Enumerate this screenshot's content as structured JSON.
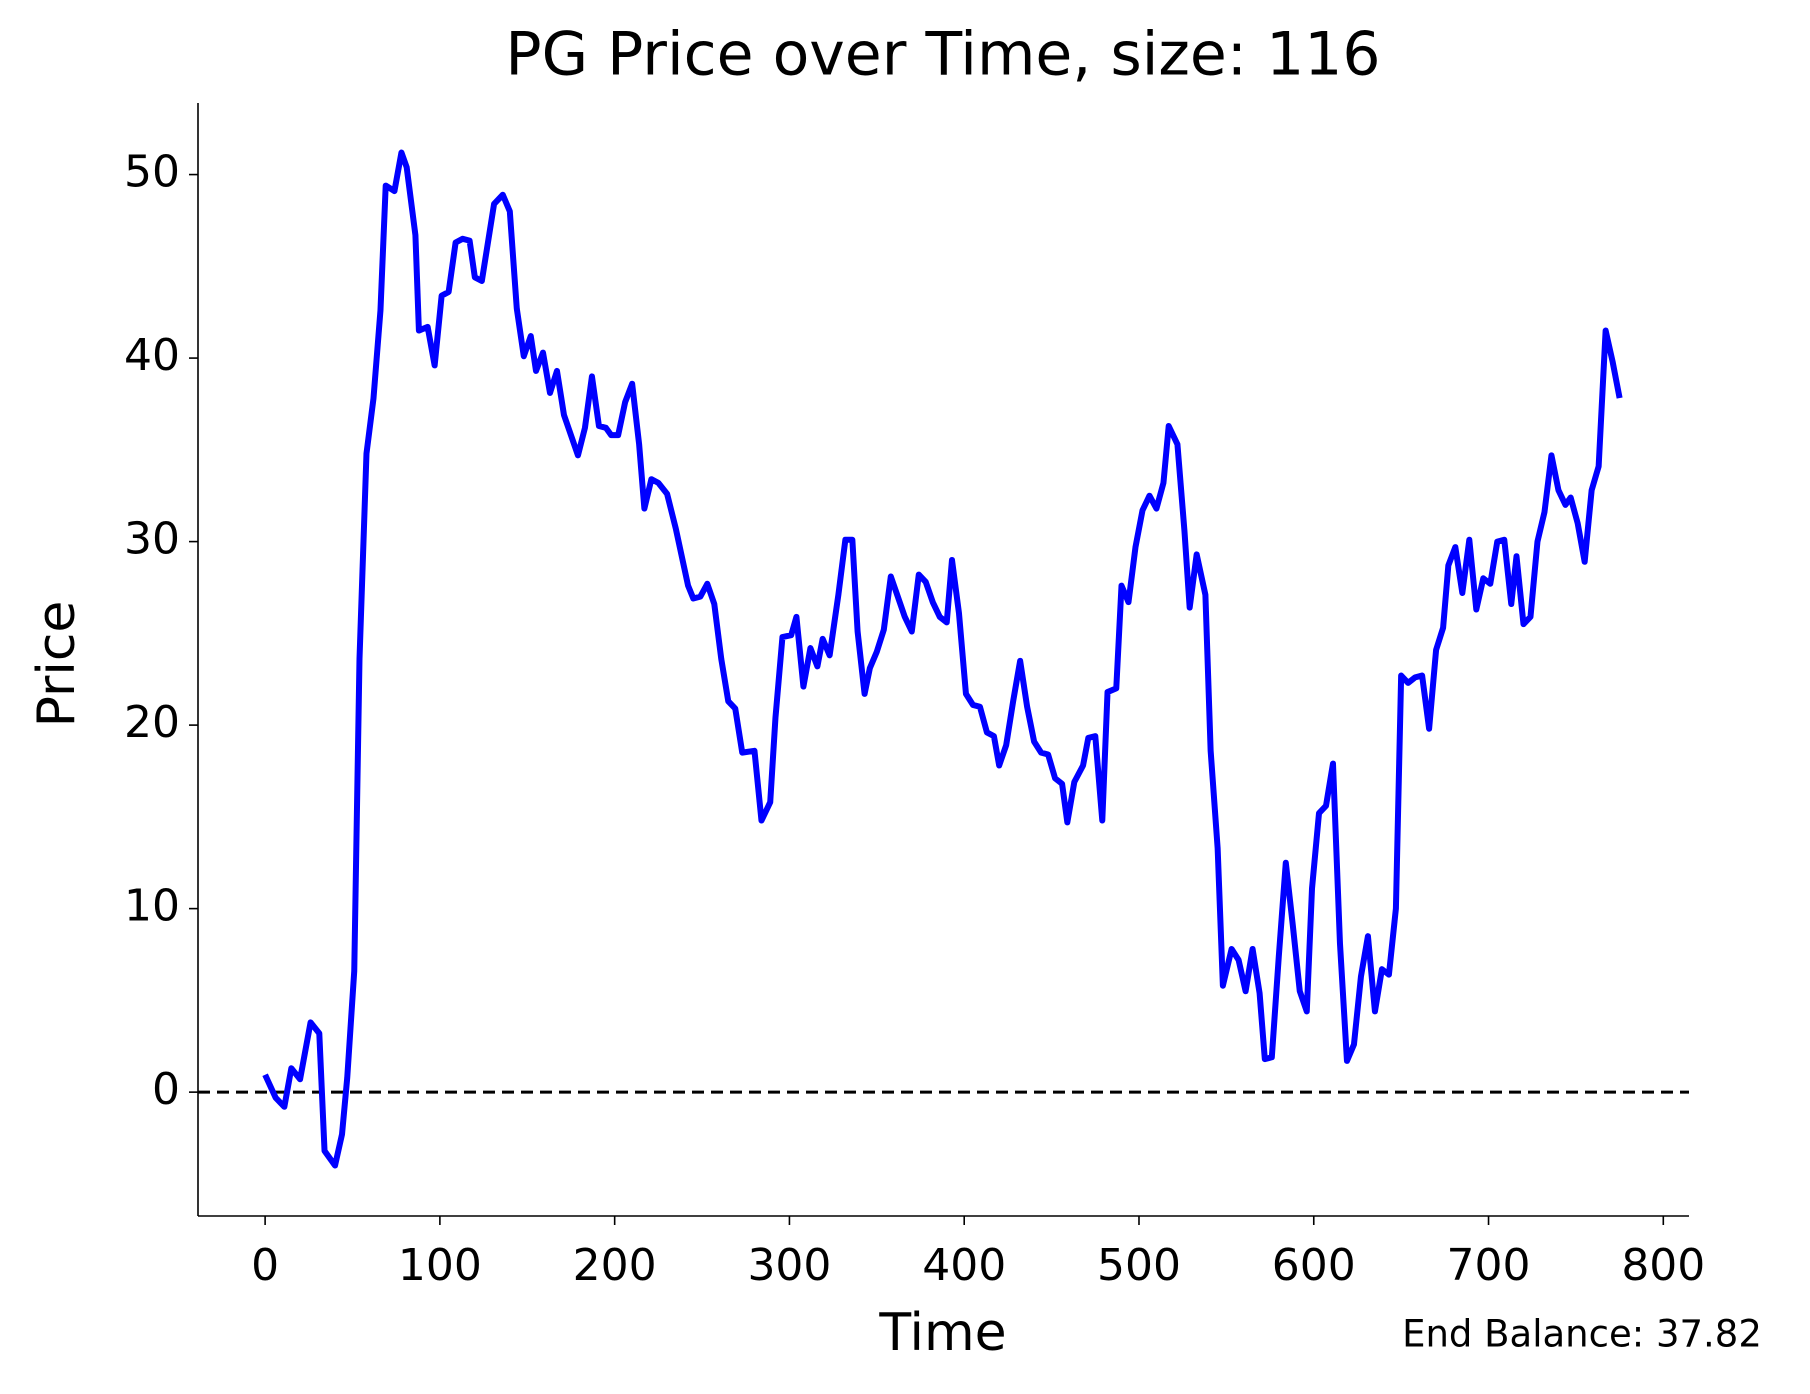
{
  "chart_data": {
    "type": "line",
    "title": "PG Price over Time, size: 116",
    "x_label": "Time",
    "y_label": "Price",
    "annotation": "End Balance: 37.82",
    "xlim": [
      -38.4,
      814.7
    ],
    "ylim": [
      -6.75,
      53.9
    ],
    "xticks": [
      0,
      100,
      200,
      300,
      400,
      500,
      600,
      700,
      800
    ],
    "yticks": [
      0,
      10,
      20,
      30,
      40,
      50
    ],
    "hline": 0,
    "x": [
      0,
      6,
      11,
      15,
      20,
      26,
      31,
      34,
      40,
      44,
      47,
      51,
      54,
      58,
      62,
      66,
      69,
      74,
      78,
      81,
      86,
      88,
      93,
      97,
      101,
      105,
      109,
      113,
      117,
      120,
      124,
      131,
      136,
      140,
      144,
      148,
      152,
      155,
      159,
      163,
      167,
      171,
      179,
      183,
      187,
      191,
      195,
      198,
      202,
      206,
      210,
      214,
      217,
      221,
      225,
      230,
      235,
      242,
      245,
      249,
      253,
      257,
      261,
      265,
      269,
      273,
      280,
      284,
      289,
      292,
      296,
      301,
      304,
      308,
      312,
      316,
      319,
      323,
      328,
      332,
      336,
      339,
      343,
      346,
      350,
      354,
      358,
      362,
      366,
      370,
      374,
      378,
      382,
      386,
      390,
      393,
      397,
      401,
      405,
      409,
      413,
      417,
      420,
      424,
      428,
      432,
      436,
      440,
      444,
      448,
      452,
      456,
      459,
      463,
      468,
      471,
      475,
      479,
      482,
      487,
      490,
      494,
      498,
      502,
      506,
      510,
      514,
      517,
      522,
      526,
      529,
      533,
      538,
      541,
      545,
      548,
      553,
      557,
      561,
      565,
      569,
      572,
      576,
      580,
      584,
      588,
      592,
      596,
      599,
      603,
      607,
      611,
      615,
      619,
      623,
      627,
      631,
      635,
      639,
      643,
      647,
      650,
      654,
      658,
      662,
      666,
      670,
      674,
      677,
      681,
      685,
      689,
      693,
      697,
      701,
      705,
      709,
      713,
      716,
      720,
      724,
      728,
      732,
      736,
      740,
      744,
      747,
      751,
      755,
      759,
      763,
      767,
      771,
      775
    ],
    "series": [
      {
        "name": "PG",
        "color": "#0000ff",
        "values": [
          0.95,
          -0.3,
          -0.8,
          1.3,
          0.7,
          3.8,
          3.2,
          -3.2,
          -4.0,
          -2.3,
          0.8,
          6.6,
          23.6,
          34.8,
          37.8,
          42.6,
          49.4,
          49.1,
          51.2,
          50.4,
          46.7,
          41.5,
          41.7,
          39.6,
          43.4,
          43.6,
          46.3,
          46.5,
          46.4,
          44.4,
          44.2,
          48.4,
          48.9,
          48.0,
          42.7,
          40.1,
          41.2,
          39.3,
          40.3,
          38.1,
          39.3,
          36.9,
          34.7,
          36.2,
          39.0,
          36.3,
          36.2,
          35.8,
          35.8,
          37.6,
          38.6,
          35.3,
          31.8,
          33.4,
          33.2,
          32.6,
          30.7,
          27.6,
          26.9,
          27.0,
          27.7,
          26.6,
          23.6,
          21.3,
          20.9,
          18.5,
          18.6,
          14.8,
          15.8,
          20.4,
          24.8,
          24.9,
          25.9,
          22.1,
          24.2,
          23.2,
          24.7,
          23.8,
          27.1,
          30.1,
          30.1,
          25.1,
          21.7,
          23.1,
          24.0,
          25.2,
          28.1,
          27.0,
          25.9,
          25.1,
          28.2,
          27.8,
          26.7,
          25.9,
          25.6,
          29.0,
          26.1,
          21.7,
          21.1,
          21.0,
          19.6,
          19.4,
          17.8,
          18.9,
          21.3,
          23.5,
          21.0,
          19.1,
          18.5,
          18.4,
          17.1,
          16.8,
          14.7,
          16.9,
          17.8,
          19.3,
          19.4,
          14.8,
          21.8,
          22.0,
          27.6,
          26.7,
          29.7,
          31.7,
          32.5,
          31.8,
          33.2,
          36.3,
          35.3,
          30.6,
          26.4,
          29.3,
          27.1,
          18.6,
          13.3,
          5.8,
          7.8,
          7.2,
          5.5,
          7.8,
          5.4,
          1.8,
          1.9,
          7.4,
          12.5,
          9.1,
          5.5,
          4.4,
          11.1,
          15.2,
          15.6,
          17.9,
          8.1,
          1.7,
          2.6,
          6.3,
          8.5,
          4.4,
          6.7,
          6.4,
          10.0,
          22.7,
          22.3,
          22.6,
          22.7,
          19.8,
          24.1,
          25.3,
          28.7,
          29.7,
          27.2,
          30.1,
          26.3,
          28.0,
          27.7,
          30.0,
          30.1,
          26.6,
          29.2,
          25.5,
          25.9,
          30.0,
          31.6,
          34.7,
          32.8,
          32.0,
          32.4,
          31.0,
          28.9,
          32.8,
          34.1,
          41.5,
          39.8,
          37.82
        ]
      }
    ]
  }
}
